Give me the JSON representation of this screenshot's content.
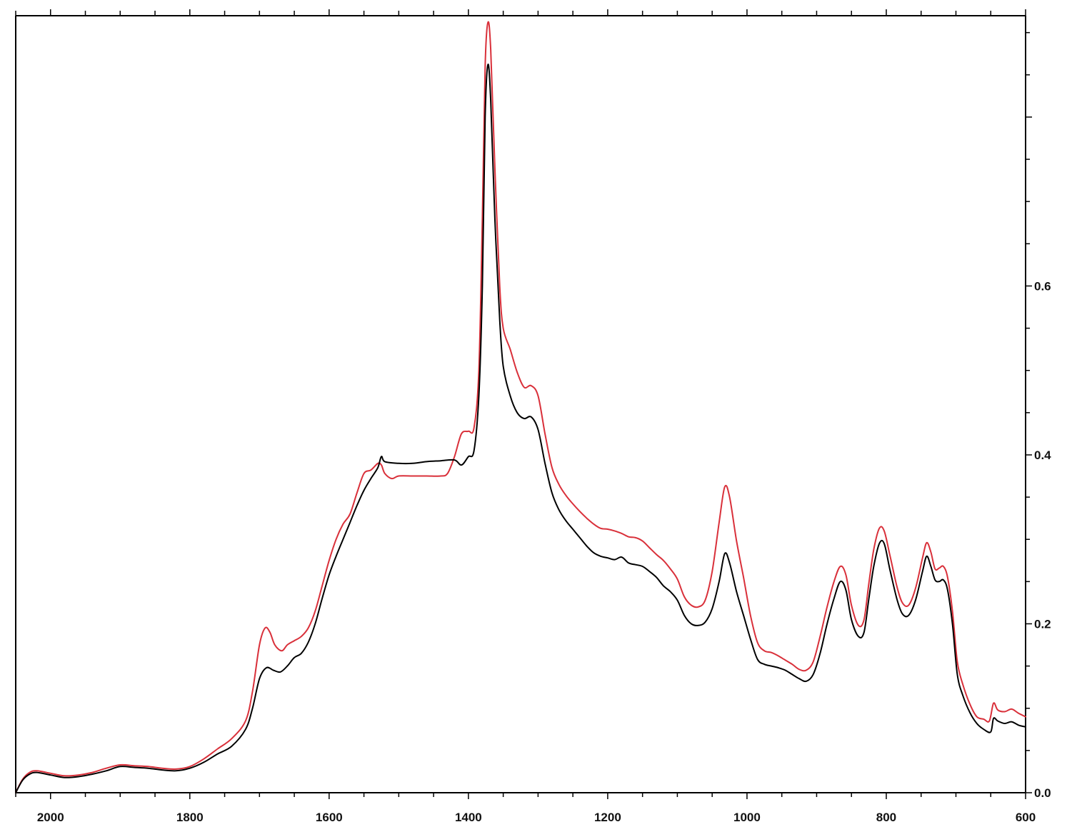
{
  "chart_data": {
    "type": "line",
    "title": "",
    "xlabel": "",
    "ylabel": "",
    "xlim": [
      2050,
      600
    ],
    "ylim": [
      0.0,
      0.92
    ],
    "x_reversed": true,
    "y_axis_side": "right",
    "grid": false,
    "legend": "none",
    "x_ticks": [
      {
        "value": 2000,
        "label": "2000"
      },
      {
        "value": 1800,
        "label": "1800"
      },
      {
        "value": 1600,
        "label": "1600"
      },
      {
        "value": 1400,
        "label": "1400"
      },
      {
        "value": 1200,
        "label": "1200"
      },
      {
        "value": 1000,
        "label": "1000"
      },
      {
        "value": 800,
        "label": "800"
      },
      {
        "value": 600,
        "label": "600"
      }
    ],
    "y_ticks": [
      {
        "value": 0.0,
        "label": "0.0"
      },
      {
        "value": 0.2,
        "label": "0.2"
      },
      {
        "value": 0.4,
        "label": "0.4"
      },
      {
        "value": 0.6,
        "label": "0.6"
      }
    ],
    "series": [
      {
        "color": "#000000",
        "points": [
          [
            2050,
            0.0
          ],
          [
            2040,
            0.015
          ],
          [
            2030,
            0.022
          ],
          [
            2020,
            0.024
          ],
          [
            2000,
            0.021
          ],
          [
            1980,
            0.018
          ],
          [
            1960,
            0.019
          ],
          [
            1940,
            0.022
          ],
          [
            1920,
            0.026
          ],
          [
            1900,
            0.031
          ],
          [
            1880,
            0.03
          ],
          [
            1860,
            0.029
          ],
          [
            1840,
            0.027
          ],
          [
            1820,
            0.026
          ],
          [
            1800,
            0.029
          ],
          [
            1780,
            0.036
          ],
          [
            1760,
            0.046
          ],
          [
            1740,
            0.055
          ],
          [
            1720,
            0.075
          ],
          [
            1710,
            0.1
          ],
          [
            1700,
            0.135
          ],
          [
            1690,
            0.148
          ],
          [
            1680,
            0.145
          ],
          [
            1670,
            0.143
          ],
          [
            1660,
            0.15
          ],
          [
            1650,
            0.16
          ],
          [
            1640,
            0.165
          ],
          [
            1630,
            0.178
          ],
          [
            1620,
            0.2
          ],
          [
            1610,
            0.23
          ],
          [
            1600,
            0.258
          ],
          [
            1590,
            0.28
          ],
          [
            1580,
            0.3
          ],
          [
            1570,
            0.32
          ],
          [
            1560,
            0.34
          ],
          [
            1550,
            0.358
          ],
          [
            1540,
            0.372
          ],
          [
            1530,
            0.385
          ],
          [
            1525,
            0.398
          ],
          [
            1520,
            0.392
          ],
          [
            1500,
            0.39
          ],
          [
            1480,
            0.39
          ],
          [
            1460,
            0.392
          ],
          [
            1440,
            0.393
          ],
          [
            1420,
            0.394
          ],
          [
            1410,
            0.388
          ],
          [
            1400,
            0.398
          ],
          [
            1392,
            0.405
          ],
          [
            1385,
            0.47
          ],
          [
            1380,
            0.6
          ],
          [
            1376,
            0.8
          ],
          [
            1372,
            0.862
          ],
          [
            1368,
            0.82
          ],
          [
            1362,
            0.68
          ],
          [
            1355,
            0.56
          ],
          [
            1350,
            0.505
          ],
          [
            1340,
            0.47
          ],
          [
            1330,
            0.45
          ],
          [
            1320,
            0.443
          ],
          [
            1310,
            0.445
          ],
          [
            1300,
            0.43
          ],
          [
            1290,
            0.39
          ],
          [
            1280,
            0.355
          ],
          [
            1270,
            0.335
          ],
          [
            1260,
            0.322
          ],
          [
            1250,
            0.312
          ],
          [
            1240,
            0.302
          ],
          [
            1230,
            0.292
          ],
          [
            1220,
            0.284
          ],
          [
            1210,
            0.28
          ],
          [
            1200,
            0.278
          ],
          [
            1190,
            0.276
          ],
          [
            1180,
            0.279
          ],
          [
            1170,
            0.272
          ],
          [
            1160,
            0.27
          ],
          [
            1150,
            0.268
          ],
          [
            1140,
            0.262
          ],
          [
            1130,
            0.255
          ],
          [
            1120,
            0.245
          ],
          [
            1110,
            0.238
          ],
          [
            1100,
            0.228
          ],
          [
            1090,
            0.21
          ],
          [
            1080,
            0.2
          ],
          [
            1070,
            0.198
          ],
          [
            1060,
            0.202
          ],
          [
            1050,
            0.218
          ],
          [
            1040,
            0.25
          ],
          [
            1032,
            0.283
          ],
          [
            1025,
            0.272
          ],
          [
            1015,
            0.238
          ],
          [
            1005,
            0.21
          ],
          [
            995,
            0.182
          ],
          [
            985,
            0.158
          ],
          [
            975,
            0.152
          ],
          [
            965,
            0.15
          ],
          [
            955,
            0.148
          ],
          [
            945,
            0.145
          ],
          [
            935,
            0.14
          ],
          [
            925,
            0.135
          ],
          [
            915,
            0.132
          ],
          [
            905,
            0.14
          ],
          [
            895,
            0.165
          ],
          [
            885,
            0.2
          ],
          [
            875,
            0.23
          ],
          [
            866,
            0.25
          ],
          [
            858,
            0.24
          ],
          [
            850,
            0.205
          ],
          [
            840,
            0.185
          ],
          [
            832,
            0.19
          ],
          [
            825,
            0.23
          ],
          [
            818,
            0.268
          ],
          [
            810,
            0.295
          ],
          [
            803,
            0.295
          ],
          [
            795,
            0.265
          ],
          [
            785,
            0.23
          ],
          [
            777,
            0.212
          ],
          [
            768,
            0.21
          ],
          [
            758,
            0.228
          ],
          [
            748,
            0.262
          ],
          [
            742,
            0.28
          ],
          [
            736,
            0.268
          ],
          [
            730,
            0.252
          ],
          [
            724,
            0.25
          ],
          [
            718,
            0.252
          ],
          [
            712,
            0.24
          ],
          [
            705,
            0.2
          ],
          [
            698,
            0.14
          ],
          [
            690,
            0.115
          ],
          [
            680,
            0.095
          ],
          [
            670,
            0.082
          ],
          [
            660,
            0.075
          ],
          [
            650,
            0.072
          ],
          [
            646,
            0.088
          ],
          [
            640,
            0.085
          ],
          [
            630,
            0.082
          ],
          [
            620,
            0.084
          ],
          [
            610,
            0.08
          ],
          [
            600,
            0.078
          ]
        ]
      },
      {
        "color": "#d9303a",
        "points": [
          [
            2050,
            0.0
          ],
          [
            2040,
            0.016
          ],
          [
            2030,
            0.024
          ],
          [
            2020,
            0.026
          ],
          [
            2000,
            0.023
          ],
          [
            1980,
            0.02
          ],
          [
            1960,
            0.021
          ],
          [
            1940,
            0.024
          ],
          [
            1920,
            0.029
          ],
          [
            1900,
            0.033
          ],
          [
            1880,
            0.032
          ],
          [
            1860,
            0.031
          ],
          [
            1840,
            0.029
          ],
          [
            1820,
            0.028
          ],
          [
            1800,
            0.031
          ],
          [
            1780,
            0.04
          ],
          [
            1760,
            0.052
          ],
          [
            1740,
            0.064
          ],
          [
            1720,
            0.085
          ],
          [
            1710,
            0.12
          ],
          [
            1700,
            0.175
          ],
          [
            1692,
            0.195
          ],
          [
            1685,
            0.19
          ],
          [
            1678,
            0.175
          ],
          [
            1668,
            0.168
          ],
          [
            1660,
            0.175
          ],
          [
            1650,
            0.18
          ],
          [
            1640,
            0.185
          ],
          [
            1630,
            0.195
          ],
          [
            1620,
            0.215
          ],
          [
            1610,
            0.245
          ],
          [
            1600,
            0.275
          ],
          [
            1590,
            0.3
          ],
          [
            1580,
            0.318
          ],
          [
            1570,
            0.33
          ],
          [
            1560,
            0.355
          ],
          [
            1550,
            0.378
          ],
          [
            1540,
            0.382
          ],
          [
            1530,
            0.39
          ],
          [
            1525,
            0.388
          ],
          [
            1520,
            0.378
          ],
          [
            1510,
            0.372
          ],
          [
            1500,
            0.375
          ],
          [
            1480,
            0.375
          ],
          [
            1460,
            0.375
          ],
          [
            1440,
            0.375
          ],
          [
            1430,
            0.378
          ],
          [
            1420,
            0.398
          ],
          [
            1410,
            0.425
          ],
          [
            1400,
            0.428
          ],
          [
            1392,
            0.432
          ],
          [
            1385,
            0.5
          ],
          [
            1380,
            0.68
          ],
          [
            1376,
            0.86
          ],
          [
            1372,
            0.912
          ],
          [
            1368,
            0.88
          ],
          [
            1362,
            0.74
          ],
          [
            1355,
            0.6
          ],
          [
            1350,
            0.55
          ],
          [
            1340,
            0.525
          ],
          [
            1330,
            0.498
          ],
          [
            1320,
            0.48
          ],
          [
            1310,
            0.482
          ],
          [
            1300,
            0.47
          ],
          [
            1290,
            0.425
          ],
          [
            1280,
            0.385
          ],
          [
            1270,
            0.365
          ],
          [
            1260,
            0.352
          ],
          [
            1250,
            0.342
          ],
          [
            1240,
            0.333
          ],
          [
            1230,
            0.325
          ],
          [
            1220,
            0.318
          ],
          [
            1210,
            0.313
          ],
          [
            1200,
            0.312
          ],
          [
            1190,
            0.31
          ],
          [
            1180,
            0.307
          ],
          [
            1170,
            0.303
          ],
          [
            1160,
            0.302
          ],
          [
            1150,
            0.298
          ],
          [
            1140,
            0.29
          ],
          [
            1130,
            0.282
          ],
          [
            1120,
            0.275
          ],
          [
            1110,
            0.265
          ],
          [
            1100,
            0.253
          ],
          [
            1090,
            0.232
          ],
          [
            1080,
            0.222
          ],
          [
            1070,
            0.22
          ],
          [
            1060,
            0.228
          ],
          [
            1050,
            0.262
          ],
          [
            1040,
            0.32
          ],
          [
            1032,
            0.362
          ],
          [
            1025,
            0.35
          ],
          [
            1015,
            0.298
          ],
          [
            1005,
            0.255
          ],
          [
            995,
            0.21
          ],
          [
            985,
            0.178
          ],
          [
            975,
            0.168
          ],
          [
            965,
            0.166
          ],
          [
            955,
            0.162
          ],
          [
            945,
            0.157
          ],
          [
            935,
            0.152
          ],
          [
            925,
            0.146
          ],
          [
            915,
            0.145
          ],
          [
            905,
            0.155
          ],
          [
            895,
            0.185
          ],
          [
            885,
            0.22
          ],
          [
            875,
            0.25
          ],
          [
            866,
            0.268
          ],
          [
            858,
            0.258
          ],
          [
            850,
            0.222
          ],
          [
            840,
            0.198
          ],
          [
            832,
            0.205
          ],
          [
            825,
            0.248
          ],
          [
            818,
            0.288
          ],
          [
            810,
            0.313
          ],
          [
            803,
            0.31
          ],
          [
            795,
            0.282
          ],
          [
            785,
            0.245
          ],
          [
            777,
            0.225
          ],
          [
            768,
            0.222
          ],
          [
            758,
            0.242
          ],
          [
            748,
            0.278
          ],
          [
            742,
            0.296
          ],
          [
            736,
            0.285
          ],
          [
            730,
            0.265
          ],
          [
            724,
            0.266
          ],
          [
            718,
            0.268
          ],
          [
            712,
            0.255
          ],
          [
            705,
            0.215
          ],
          [
            698,
            0.155
          ],
          [
            690,
            0.128
          ],
          [
            680,
            0.105
          ],
          [
            670,
            0.09
          ],
          [
            660,
            0.087
          ],
          [
            652,
            0.085
          ],
          [
            646,
            0.106
          ],
          [
            640,
            0.098
          ],
          [
            630,
            0.096
          ],
          [
            620,
            0.099
          ],
          [
            610,
            0.094
          ],
          [
            600,
            0.09
          ]
        ]
      }
    ]
  }
}
